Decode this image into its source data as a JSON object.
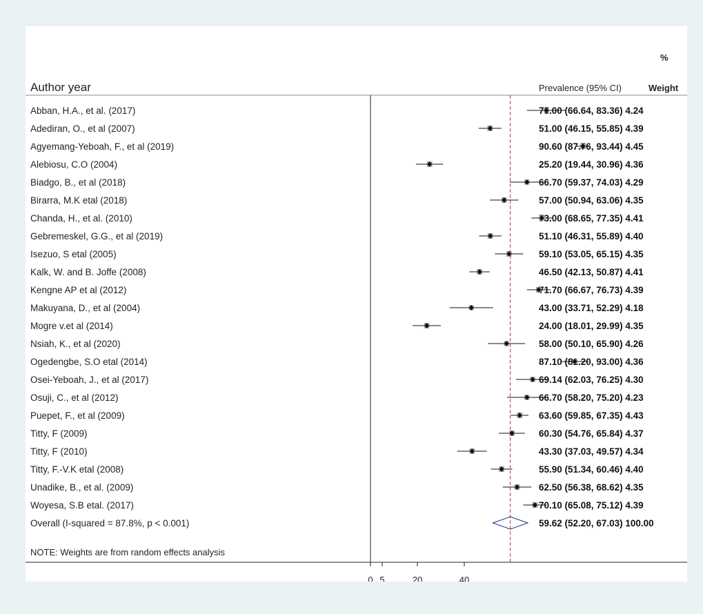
{
  "header": {
    "author_label": "Author year",
    "prevalence_label": "Prevalence (95% CI)",
    "weight_label_top": "%",
    "weight_label_bottom": "Weight"
  },
  "note": "NOTE: Weights are from random effects analysis",
  "chart_data": {
    "type": "forest",
    "xtick_labels": [
      "0",
      "5",
      "20",
      "40"
    ],
    "xticks": [
      0,
      5,
      20,
      40
    ],
    "overall_line": 59.62,
    "studies": [
      {
        "label": "Abban, H.A., et al. (2017)",
        "est": 75.0,
        "lo": 66.64,
        "hi": 83.36,
        "weight": 4.24,
        "text": "75.00 (66.64, 83.36) 4.24"
      },
      {
        "label": "Adediran, O., et al (2007)",
        "est": 51.0,
        "lo": 46.15,
        "hi": 55.85,
        "weight": 4.39,
        "text": "51.00 (46.15, 55.85) 4.39"
      },
      {
        "label": "Agyemang-Yeboah, F., et al (2019)",
        "est": 90.6,
        "lo": 87.76,
        "hi": 93.44,
        "weight": 4.45,
        "text": "90.60 (87.76, 93.44) 4.45"
      },
      {
        "label": "Alebiosu, C.O (2004)",
        "est": 25.2,
        "lo": 19.44,
        "hi": 30.96,
        "weight": 4.36,
        "text": "25.20 (19.44, 30.96) 4.36"
      },
      {
        "label": "Biadgo, B., et al (2018)",
        "est": 66.7,
        "lo": 59.37,
        "hi": 74.03,
        "weight": 4.29,
        "text": "66.70 (59.37, 74.03) 4.29"
      },
      {
        "label": "Birarra, M.K etal (2018)",
        "est": 57.0,
        "lo": 50.94,
        "hi": 63.06,
        "weight": 4.35,
        "text": "57.00 (50.94, 63.06) 4.35"
      },
      {
        "label": "Chanda, H., et al. (2010)",
        "est": 73.0,
        "lo": 68.65,
        "hi": 77.35,
        "weight": 4.41,
        "text": "73.00 (68.65, 77.35) 4.41"
      },
      {
        "label": "Gebremeskel, G.G., et al (2019)",
        "est": 51.1,
        "lo": 46.31,
        "hi": 55.89,
        "weight": 4.4,
        "text": "51.10 (46.31, 55.89) 4.40"
      },
      {
        "label": "Isezuo, S etal (2005)",
        "est": 59.1,
        "lo": 53.05,
        "hi": 65.15,
        "weight": 4.35,
        "text": "59.10 (53.05, 65.15) 4.35"
      },
      {
        "label": "Kalk, W. and B. Joffe (2008)",
        "est": 46.5,
        "lo": 42.13,
        "hi": 50.87,
        "weight": 4.41,
        "text": "46.50 (42.13, 50.87) 4.41"
      },
      {
        "label": "Kengne AP et al (2012)",
        "est": 71.7,
        "lo": 66.67,
        "hi": 76.73,
        "weight": 4.39,
        "text": "71.70 (66.67, 76.73) 4.39"
      },
      {
        "label": "Makuyana, D., et al (2004)",
        "est": 43.0,
        "lo": 33.71,
        "hi": 52.29,
        "weight": 4.18,
        "text": "43.00 (33.71, 52.29) 4.18"
      },
      {
        "label": "Mogre v.et al (2014)",
        "est": 24.0,
        "lo": 18.01,
        "hi": 29.99,
        "weight": 4.35,
        "text": "24.00 (18.01, 29.99) 4.35"
      },
      {
        "label": "Nsiah, K., et al (2020)",
        "est": 58.0,
        "lo": 50.1,
        "hi": 65.9,
        "weight": 4.26,
        "text": "58.00 (50.10, 65.90) 4.26"
      },
      {
        "label": "Ogedengbe, S.O etal (2014)",
        "est": 87.1,
        "lo": 81.2,
        "hi": 93.0,
        "weight": 4.36,
        "text": "87.10 (81.20, 93.00) 4.36"
      },
      {
        "label": "Osei-Yeboah, J., et al (2017)",
        "est": 69.14,
        "lo": 62.03,
        "hi": 76.25,
        "weight": 4.3,
        "text": "69.14 (62.03, 76.25) 4.30"
      },
      {
        "label": "Osuji, C., et al (2012)",
        "est": 66.7,
        "lo": 58.2,
        "hi": 75.2,
        "weight": 4.23,
        "text": "66.70 (58.20, 75.20) 4.23"
      },
      {
        "label": "Puepet, F., et al (2009)",
        "est": 63.6,
        "lo": 59.85,
        "hi": 67.35,
        "weight": 4.43,
        "text": "63.60 (59.85, 67.35) 4.43"
      },
      {
        "label": "Titty, F (2009)",
        "est": 60.3,
        "lo": 54.76,
        "hi": 65.84,
        "weight": 4.37,
        "text": "60.30 (54.76, 65.84) 4.37"
      },
      {
        "label": "Titty, F (2010)",
        "est": 43.3,
        "lo": 37.03,
        "hi": 49.57,
        "weight": 4.34,
        "text": "43.30 (37.03, 49.57) 4.34"
      },
      {
        "label": "Titty, F.-V.K etal (2008)",
        "est": 55.9,
        "lo": 51.34,
        "hi": 60.46,
        "weight": 4.4,
        "text": "55.90 (51.34, 60.46) 4.40"
      },
      {
        "label": "Unadike, B., et al. (2009)",
        "est": 62.5,
        "lo": 56.38,
        "hi": 68.62,
        "weight": 4.35,
        "text": "62.50 (56.38, 68.62) 4.35"
      },
      {
        "label": "Woyesa, S.B etal. (2017)",
        "est": 70.1,
        "lo": 65.08,
        "hi": 75.12,
        "weight": 4.39,
        "text": "70.10 (65.08, 75.12) 4.39"
      }
    ],
    "overall": {
      "label": "Overall (I-squared = 87.8%, p < 0.001)",
      "est": 59.62,
      "lo": 52.2,
      "hi": 67.03,
      "weight": 100.0,
      "text": "59.62 (52.20, 67.03) 100.00"
    }
  }
}
